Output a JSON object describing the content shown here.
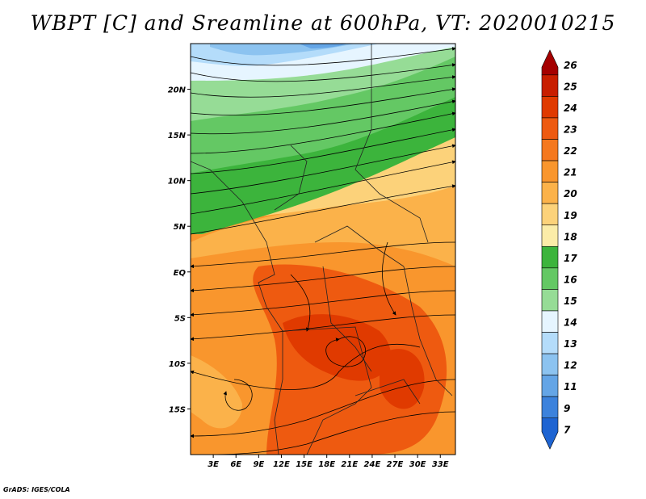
{
  "title": "WBPT [C] and Sreamline at 600hPa, VT: 2020010215",
  "credit": "GrADS: IGES/COLA",
  "map": {
    "lon_range": [
      0,
      35
    ],
    "lat_range": [
      -20,
      25
    ],
    "lat_ticks": [
      {
        "label": "20N",
        "lat": 20
      },
      {
        "label": "15N",
        "lat": 15
      },
      {
        "label": "10N",
        "lat": 10
      },
      {
        "label": "5N",
        "lat": 5
      },
      {
        "label": "EQ",
        "lat": 0
      },
      {
        "label": "5S",
        "lat": -5
      },
      {
        "label": "10S",
        "lat": -10
      },
      {
        "label": "15S",
        "lat": -15
      }
    ],
    "lon_ticks": [
      {
        "label": "3E",
        "lon": 3
      },
      {
        "label": "6E",
        "lon": 6
      },
      {
        "label": "9E",
        "lon": 9
      },
      {
        "label": "12E",
        "lon": 12
      },
      {
        "label": "15E",
        "lon": 15
      },
      {
        "label": "18E",
        "lon": 18
      },
      {
        "label": "21E",
        "lon": 21
      },
      {
        "label": "24E",
        "lon": 24
      },
      {
        "label": "27E",
        "lon": 27
      },
      {
        "label": "30E",
        "lon": 30
      },
      {
        "label": "33E",
        "lon": 33
      }
    ]
  },
  "colorbar": {
    "labels": [
      "26",
      "25",
      "24",
      "23",
      "22",
      "21",
      "20",
      "19",
      "18",
      "17",
      "16",
      "15",
      "14",
      "13",
      "12",
      "11",
      "9",
      "7"
    ],
    "colors": [
      "#a50000",
      "#c81e00",
      "#e03a00",
      "#ee5a10",
      "#f5781e",
      "#f9962d",
      "#fbb24a",
      "#fcd27a",
      "#fbeca8",
      "#3cb43c",
      "#64c864",
      "#96dc96",
      "#e6f5ff",
      "#b4dcfa",
      "#8cc3f0",
      "#64a5e6",
      "#3c82dc",
      "#1e64d2"
    ]
  }
}
